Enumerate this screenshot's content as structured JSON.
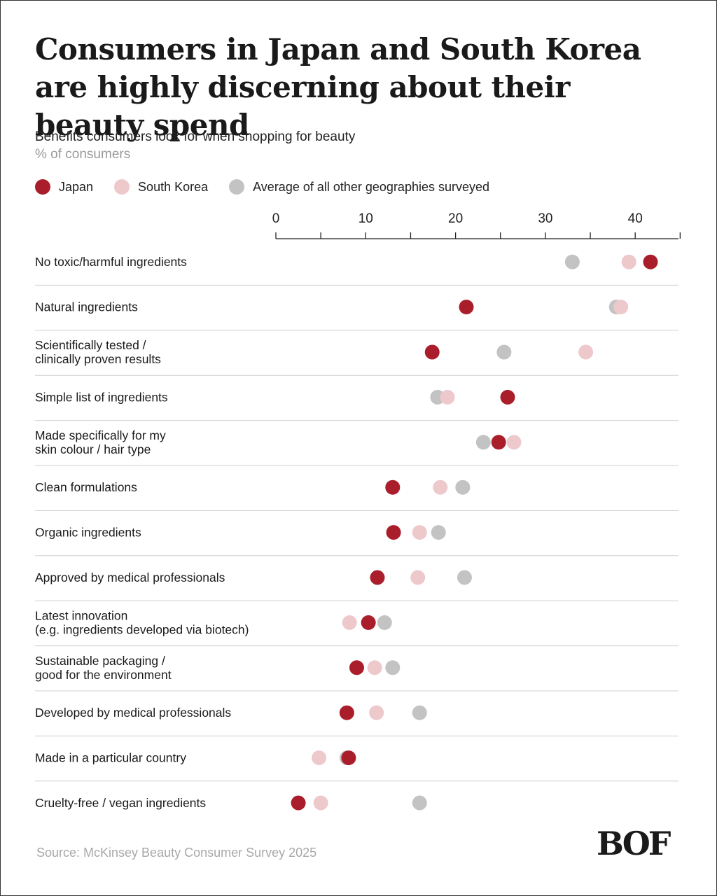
{
  "title": "Consumers in Japan and South Korea are highly discerning about their beauty spend",
  "subtitle": "Benefits consumers look for when shopping for beauty",
  "unit": "% of consumers",
  "source": "Source: McKinsey Beauty Consumer Survey 2025",
  "logo": "BOF",
  "colors": {
    "japan": "#aa1e2c",
    "south_korea": "#edc9cc",
    "other": "#c3c3c3",
    "axis": "#222222",
    "separator": "#cfcfcf"
  },
  "chart_data": {
    "type": "scatter",
    "title": "Benefits consumers look for when shopping for beauty",
    "xlabel": "% of consumers",
    "xlim": [
      0,
      45
    ],
    "x_ticks": [
      0,
      10,
      20,
      30,
      40
    ],
    "legend_position": "top",
    "grid": false,
    "series": [
      {
        "name": "Japan",
        "color": "#aa1e2c",
        "values": [
          41.7,
          21.2,
          17.4,
          25.8,
          24.8,
          13.0,
          13.1,
          11.3,
          10.3,
          9.0,
          7.9,
          8.1,
          2.5
        ]
      },
      {
        "name": "South Korea",
        "color": "#edc9cc",
        "values": [
          39.3,
          38.4,
          34.5,
          19.1,
          26.5,
          18.3,
          16.0,
          15.8,
          8.2,
          11.0,
          11.2,
          4.8,
          5.0
        ]
      },
      {
        "name": "Average of all other geographies surveyed",
        "color": "#c3c3c3",
        "values": [
          33.0,
          37.9,
          25.4,
          18.0,
          23.1,
          20.8,
          18.1,
          21.0,
          12.1,
          13.0,
          16.0,
          7.9,
          16.0
        ]
      }
    ],
    "categories": [
      [
        "No toxic/harmful ingredients"
      ],
      [
        "Natural ingredients"
      ],
      [
        "Scientifically tested /",
        "clinically proven results"
      ],
      [
        "Simple list of ingredients"
      ],
      [
        "Made specifically for my",
        "skin colour / hair type"
      ],
      [
        "Clean formulations"
      ],
      [
        "Organic ingredients"
      ],
      [
        "Approved by medical professionals"
      ],
      [
        "Latest innovation",
        "(e.g. ingredients developed via biotech)"
      ],
      [
        "Sustainable packaging /",
        "good for the environment"
      ],
      [
        "Developed by medical professionals"
      ],
      [
        "Made in a particular country"
      ],
      [
        "Cruelty-free / vegan ingredients"
      ]
    ]
  }
}
